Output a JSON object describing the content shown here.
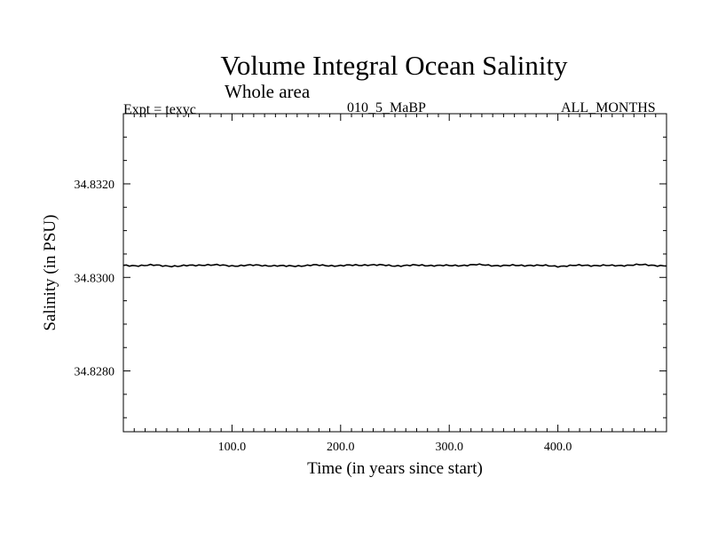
{
  "header": {
    "title": "Volume Integral Ocean Salinity",
    "subtitle": "Whole area",
    "experiment": "Expt = texyc",
    "run_id": "010_5_MaBP",
    "period": "ALL_MONTHS"
  },
  "chart_data": {
    "type": "line",
    "title": "Volume Integral Ocean Salinity",
    "subtitle": "Whole area",
    "xlabel": "Time (in years since start)",
    "ylabel": "Salinity (in PSU)",
    "xlim": [
      0,
      500
    ],
    "ylim": [
      34.8267,
      34.8335
    ],
    "x_ticks": [
      100,
      200,
      300,
      400
    ],
    "x_tick_labels": [
      "100.0",
      "200.0",
      "300.0",
      "400.0"
    ],
    "y_ticks": [
      34.828,
      34.83,
      34.832
    ],
    "y_tick_labels": [
      "34.8280",
      "34.8300",
      "34.8320"
    ],
    "grid": false,
    "series": [
      {
        "color": "#000000",
        "x": [
          0,
          25,
          50,
          75,
          100,
          125,
          150,
          175,
          200,
          225,
          250,
          275,
          300,
          325,
          350,
          375,
          400,
          425,
          450,
          475,
          500
        ],
        "y": [
          34.83025,
          34.83026,
          34.83024,
          34.83027,
          34.83025,
          34.83026,
          34.83024,
          34.83026,
          34.83025,
          34.83027,
          34.83025,
          34.83026,
          34.83025,
          34.83027,
          34.83025,
          34.83026,
          34.83024,
          34.83026,
          34.83025,
          34.83027,
          34.83025
        ]
      }
    ]
  }
}
